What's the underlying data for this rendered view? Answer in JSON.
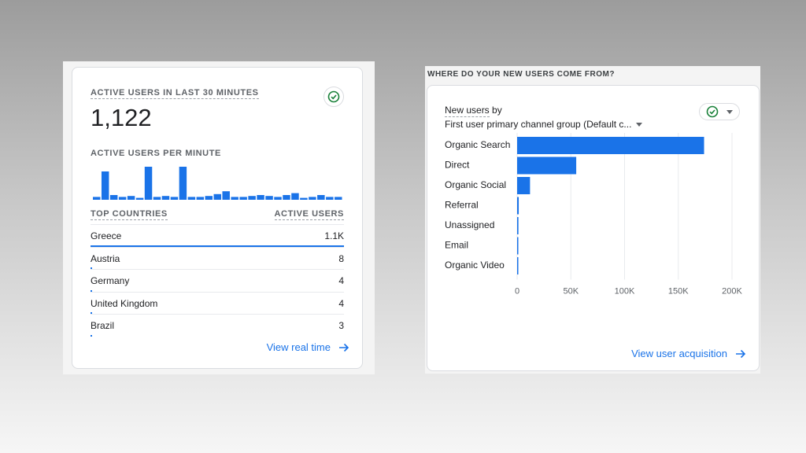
{
  "realtime_card": {
    "title": "ACTIVE USERS IN LAST 30 MINUTES",
    "status_icon": "check-circle-icon",
    "active_users": "1,122",
    "per_minute_label": "ACTIVE USERS PER MINUTE",
    "per_minute_values": [
      3,
      30,
      5,
      3,
      4,
      2,
      35,
      3,
      4,
      3,
      35,
      3,
      3,
      4,
      6,
      9,
      3,
      3,
      4,
      5,
      4,
      3,
      5,
      7,
      2,
      3,
      5,
      3,
      3
    ],
    "table_headers": [
      "TOP COUNTRIES",
      "ACTIVE USERS"
    ],
    "rows": [
      {
        "country": "Greece",
        "value": "1.1K",
        "share": 1.0
      },
      {
        "country": "Austria",
        "value": "8",
        "share": 0.007
      },
      {
        "country": "Germany",
        "value": "4",
        "share": 0.004
      },
      {
        "country": "United Kingdom",
        "value": "4",
        "share": 0.004
      },
      {
        "country": "Brazil",
        "value": "3",
        "share": 0.003
      }
    ],
    "link_label": "View real time",
    "link_icon": "arrow-right-icon",
    "accent_color": "#1a73e8"
  },
  "acquisition_card": {
    "heading": "WHERE DO YOUR NEW USERS COME FROM?",
    "title_prefix": "New users",
    "title_suffix": "by",
    "dimension_selector": "First user primary channel group (Default c...",
    "status_icon": "check-circle-icon",
    "link_label": "View user acquisition",
    "link_icon": "arrow-right-icon"
  },
  "chart_data": {
    "type": "bar",
    "orientation": "horizontal",
    "categories": [
      "Organic Search",
      "Direct",
      "Organic Social",
      "Referral",
      "Unassigned",
      "Email",
      "Organic Video"
    ],
    "values": [
      174000,
      55000,
      12000,
      1500,
      1200,
      500,
      400
    ],
    "xticks": [
      "0",
      "50K",
      "100K",
      "150K",
      "200K"
    ],
    "xlim": [
      0,
      200000
    ],
    "grid": true,
    "color": "#1a73e8"
  }
}
